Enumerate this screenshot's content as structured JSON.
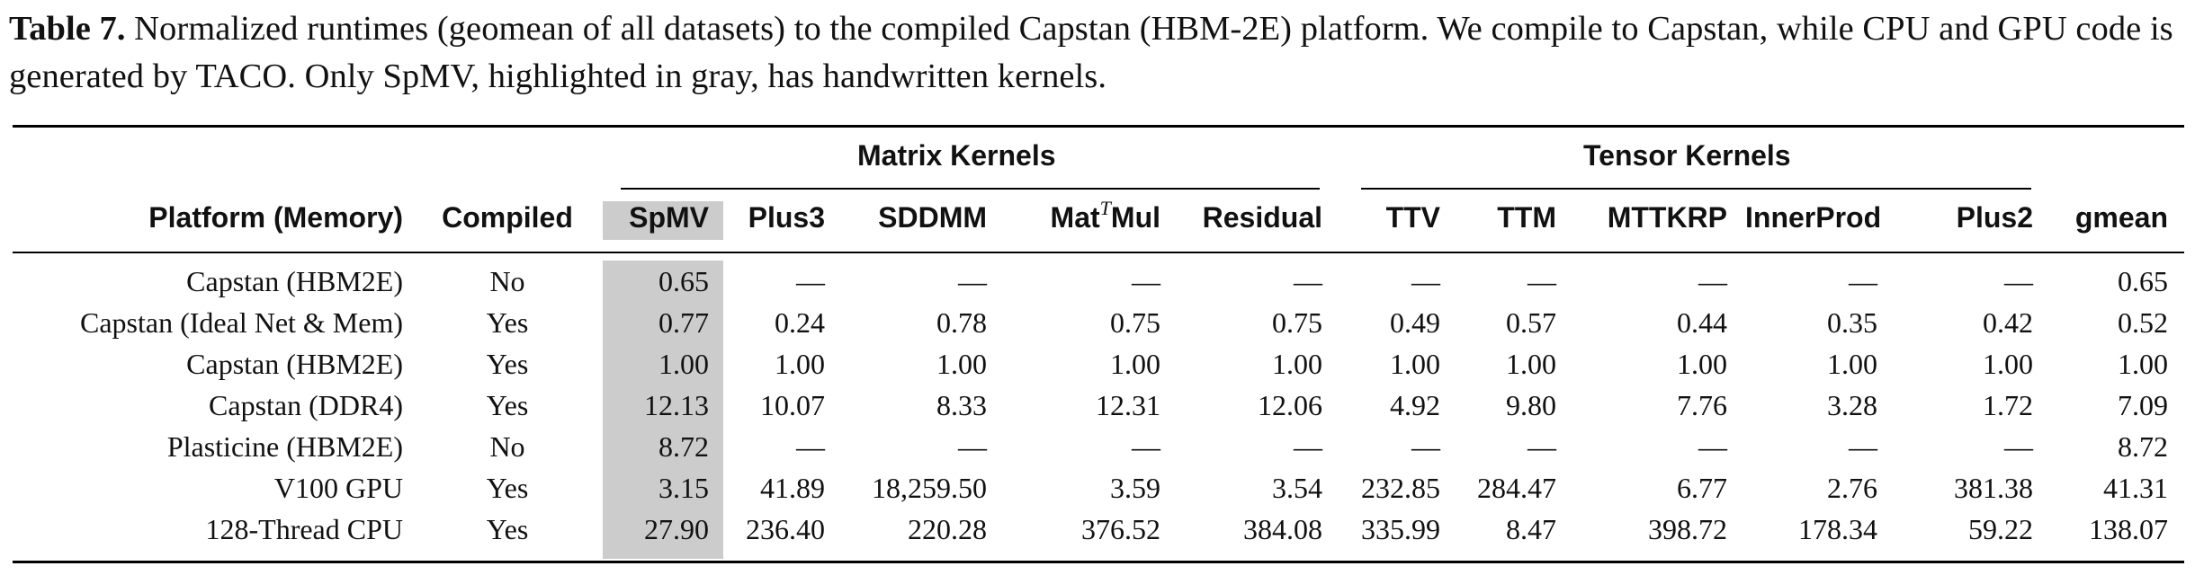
{
  "caption": {
    "label": "Table 7.",
    "text": " Normalized runtimes (geomean of all datasets) to the compiled Capstan (HBM-2E) platform. We compile to Capstan, while CPU and GPU code is generated by TACO. Only SpMV, highlighted in gray, has handwritten kernels."
  },
  "table": {
    "groups": [
      "Matrix Kernels",
      "Tensor Kernels"
    ],
    "headers": {
      "platform": "Platform (Memory)",
      "compiled": "Compiled",
      "spmv": "SpMV",
      "plus3": "Plus3",
      "sddmm": "SDDMM",
      "matmul_pre": "Mat",
      "matmul_sup": "T",
      "matmul_post": "Mul",
      "residual": "Residual",
      "ttv": "TTV",
      "ttm": "TTM",
      "mttkrp": "MTTKRP",
      "innerprod": "InnerProd",
      "plus2": "Plus2",
      "gmean": "gmean"
    },
    "rows": [
      [
        "Capstan (HBM2E)",
        "No",
        "0.65",
        "—",
        "—",
        "—",
        "—",
        "—",
        "—",
        "—",
        "—",
        "—",
        "0.65"
      ],
      [
        "Capstan (Ideal Net & Mem)",
        "Yes",
        "0.77",
        "0.24",
        "0.78",
        "0.75",
        "0.75",
        "0.49",
        "0.57",
        "0.44",
        "0.35",
        "0.42",
        "0.52"
      ],
      [
        "Capstan (HBM2E)",
        "Yes",
        "1.00",
        "1.00",
        "1.00",
        "1.00",
        "1.00",
        "1.00",
        "1.00",
        "1.00",
        "1.00",
        "1.00",
        "1.00"
      ],
      [
        "Capstan (DDR4)",
        "Yes",
        "12.13",
        "10.07",
        "8.33",
        "12.31",
        "12.06",
        "4.92",
        "9.80",
        "7.76",
        "3.28",
        "1.72",
        "7.09"
      ],
      [
        "Plasticine (HBM2E)",
        "No",
        "8.72",
        "—",
        "—",
        "—",
        "—",
        "—",
        "—",
        "—",
        "—",
        "—",
        "8.72"
      ],
      [
        "V100 GPU",
        "Yes",
        "3.15",
        "41.89",
        "18,259.50",
        "3.59",
        "3.54",
        "232.85",
        "284.47",
        "6.77",
        "2.76",
        "381.38",
        "41.31"
      ],
      [
        "128-Thread CPU",
        "Yes",
        "27.90",
        "236.40",
        "220.28",
        "376.52",
        "384.08",
        "335.99",
        "8.47",
        "398.72",
        "178.34",
        "59.22",
        "138.07"
      ]
    ]
  }
}
